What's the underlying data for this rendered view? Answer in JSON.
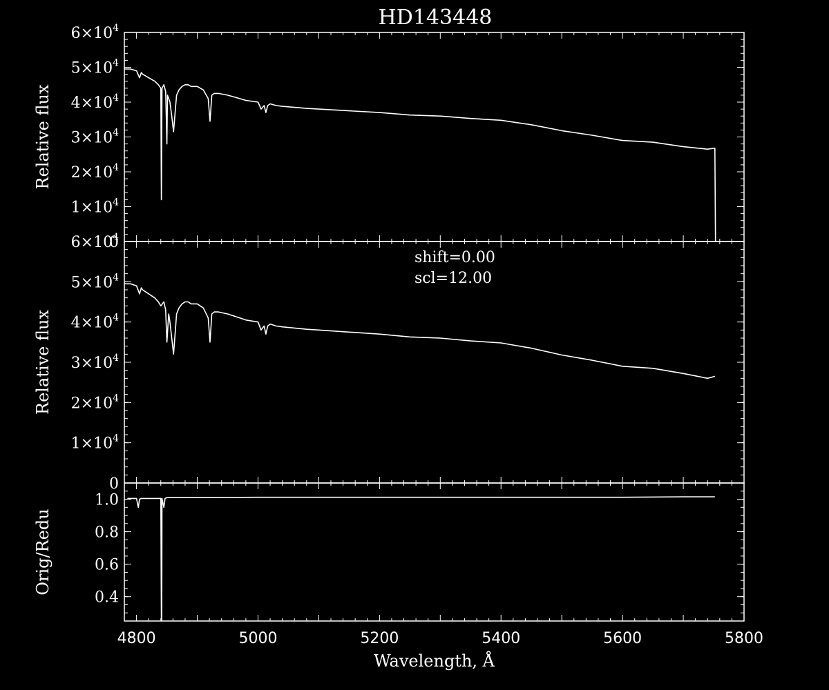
{
  "title": "HD143448",
  "colors": {
    "background": "#000000",
    "foreground": "#ffffff"
  },
  "chart_data": [
    {
      "type": "line",
      "panel": "top",
      "ylabel": "Relative flux",
      "xlim": [
        4780,
        5800
      ],
      "ylim": [
        0,
        60000
      ],
      "yticks": [
        {
          "value": 0,
          "base": "0",
          "exp": ""
        },
        {
          "value": 10000,
          "base": "1×10",
          "exp": "4"
        },
        {
          "value": 20000,
          "base": "2×10",
          "exp": "4"
        },
        {
          "value": 30000,
          "base": "3×10",
          "exp": "4"
        },
        {
          "value": 40000,
          "base": "4×10",
          "exp": "4"
        },
        {
          "value": 50000,
          "base": "5×10",
          "exp": "4"
        },
        {
          "value": 60000,
          "base": "6×10",
          "exp": "4"
        }
      ],
      "x": [
        4780,
        4790,
        4800,
        4805,
        4808,
        4810,
        4815,
        4820,
        4825,
        4830,
        4836,
        4840,
        4841,
        4842,
        4845,
        4848,
        4850,
        4851,
        4852,
        4855,
        4858,
        4861,
        4864,
        4866,
        4870,
        4875,
        4880,
        4885,
        4890,
        4900,
        4910,
        4918,
        4921,
        4924,
        4928,
        4935,
        4950,
        4970,
        4980,
        5000,
        5005,
        5010,
        5013,
        5016,
        5020,
        5030,
        5040,
        5060,
        5080,
        5100,
        5150,
        5200,
        5250,
        5300,
        5350,
        5400,
        5450,
        5500,
        5550,
        5600,
        5650,
        5700,
        5740,
        5752,
        5753
      ],
      "y": [
        49500,
        49500,
        49000,
        47000,
        48500,
        48000,
        47500,
        47000,
        46500,
        46000,
        45000,
        44000,
        12000,
        44000,
        45000,
        43000,
        28000,
        42000,
        41500,
        40000,
        36000,
        31500,
        38000,
        42000,
        43500,
        44500,
        45000,
        45000,
        44500,
        44500,
        43500,
        41000,
        34500,
        42000,
        42500,
        42500,
        42000,
        41000,
        40500,
        40000,
        38000,
        39000,
        37000,
        39000,
        39500,
        39000,
        38800,
        38500,
        38200,
        38000,
        37500,
        37000,
        36300,
        36000,
        35300,
        34800,
        33500,
        31800,
        30500,
        29000,
        28500,
        27200,
        26500,
        26800,
        0
      ]
    },
    {
      "type": "line",
      "panel": "middle",
      "ylabel": "Relative flux",
      "annotations": [
        "shift=0.00",
        "scl=12.00"
      ],
      "xlim": [
        4780,
        5800
      ],
      "ylim": [
        0,
        60000
      ],
      "yticks": [
        {
          "value": 0,
          "base": "0",
          "exp": ""
        },
        {
          "value": 10000,
          "base": "1×10",
          "exp": "4"
        },
        {
          "value": 20000,
          "base": "2×10",
          "exp": "4"
        },
        {
          "value": 30000,
          "base": "3×10",
          "exp": "4"
        },
        {
          "value": 40000,
          "base": "4×10",
          "exp": "4"
        },
        {
          "value": 50000,
          "base": "5×10",
          "exp": "4"
        },
        {
          "value": 60000,
          "base": "6×10",
          "exp": "4"
        }
      ],
      "x": [
        4780,
        4790,
        4800,
        4805,
        4808,
        4810,
        4815,
        4820,
        4825,
        4830,
        4836,
        4840,
        4845,
        4848,
        4850,
        4853,
        4855,
        4858,
        4861,
        4864,
        4866,
        4870,
        4875,
        4880,
        4885,
        4890,
        4900,
        4910,
        4918,
        4921,
        4924,
        4928,
        4935,
        4950,
        4970,
        4980,
        5000,
        5005,
        5010,
        5013,
        5016,
        5020,
        5030,
        5040,
        5060,
        5080,
        5100,
        5150,
        5200,
        5250,
        5300,
        5350,
        5400,
        5450,
        5500,
        5550,
        5600,
        5650,
        5700,
        5740,
        5752
      ],
      "y": [
        49500,
        49500,
        49000,
        47000,
        48500,
        48000,
        47500,
        47000,
        46500,
        46000,
        45000,
        44000,
        45000,
        43000,
        35000,
        42000,
        40000,
        36000,
        32000,
        38000,
        42000,
        43500,
        44500,
        45000,
        45000,
        44500,
        44500,
        43500,
        41000,
        35000,
        42000,
        42500,
        42500,
        42000,
        41000,
        40500,
        40000,
        38000,
        39000,
        37000,
        39000,
        39500,
        39000,
        38800,
        38500,
        38200,
        38000,
        37500,
        37000,
        36300,
        36000,
        35300,
        34800,
        33500,
        31800,
        30500,
        29000,
        28500,
        27200,
        26000,
        26500
      ]
    },
    {
      "type": "line",
      "panel": "bottom",
      "ylabel": "Orig/Redu",
      "xlabel": "Wavelength, Å",
      "xlim": [
        4780,
        5800
      ],
      "ylim": [
        0.25,
        1.1
      ],
      "xticks": [
        "4800",
        "5000",
        "5200",
        "5400",
        "5600",
        "5800"
      ],
      "yticks": [
        {
          "value": 0.4,
          "base": "0.4",
          "exp": ""
        },
        {
          "value": 0.6,
          "base": "0.6",
          "exp": ""
        },
        {
          "value": 0.8,
          "base": "0.8",
          "exp": ""
        },
        {
          "value": 1.0,
          "base": "1.0",
          "exp": ""
        }
      ],
      "x": [
        4785,
        4790,
        4795,
        4800,
        4803,
        4805,
        4808,
        4810,
        4815,
        4820,
        4825,
        4830,
        4835,
        4840,
        4841,
        4841.5,
        4842,
        4845,
        4847,
        4850,
        4860,
        4900,
        5000,
        5100,
        5200,
        5300,
        5400,
        5500,
        5600,
        5700,
        5752
      ],
      "y": [
        1.005,
        1.005,
        1.005,
        1.005,
        0.95,
        1.0,
        1.005,
        1.005,
        1.005,
        1.005,
        1.005,
        1.005,
        1.005,
        1.005,
        0.25,
        0.25,
        1.005,
        0.95,
        1.005,
        1.01,
        1.01,
        1.01,
        1.012,
        1.012,
        1.012,
        1.012,
        1.012,
        1.012,
        1.012,
        1.015,
        1.015
      ]
    }
  ]
}
